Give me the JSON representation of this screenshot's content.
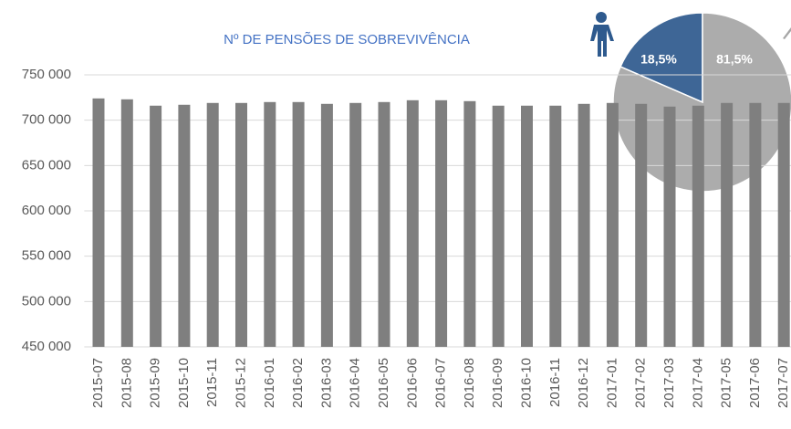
{
  "chart_data": [
    {
      "type": "bar",
      "title": "Nº DE PENSÕES DE SOBREVIVÊNCIA",
      "categories": [
        "2015-07",
        "2015-08",
        "2015-09",
        "2015-10",
        "2015-11",
        "2015-12",
        "2016-01",
        "2016-02",
        "2016-03",
        "2016-04",
        "2016-05",
        "2016-06",
        "2016-07",
        "2016-08",
        "2016-09",
        "2016-10",
        "2016-11",
        "2016-12",
        "2017-01",
        "2017-02",
        "2017-03",
        "2017-04",
        "2017-05",
        "2017-06",
        "2017-07"
      ],
      "values": [
        724000,
        723000,
        716000,
        717000,
        719000,
        719000,
        720000,
        720000,
        718000,
        719000,
        720000,
        722000,
        722000,
        721000,
        716000,
        716000,
        716000,
        718000,
        719000,
        718000,
        715000,
        716000,
        719000,
        719000,
        719000
      ],
      "color": "#7f7f7f",
      "ylim": [
        450000,
        750000
      ],
      "yticks": [
        {
          "value": 450000,
          "label": "450 000"
        },
        {
          "value": 500000,
          "label": "500 000"
        },
        {
          "value": 550000,
          "label": "550 000"
        },
        {
          "value": 600000,
          "label": "600 000"
        },
        {
          "value": 650000,
          "label": "650 000"
        },
        {
          "value": 700000,
          "label": "700 000"
        },
        {
          "value": 750000,
          "label": "750 000"
        }
      ],
      "grid": true
    },
    {
      "type": "pie",
      "values": [
        18.5,
        81.5
      ],
      "value_labels": [
        "18,5%",
        "81,5%"
      ],
      "colors": [
        "#2e5a8e",
        "#a6a6a6"
      ]
    }
  ]
}
